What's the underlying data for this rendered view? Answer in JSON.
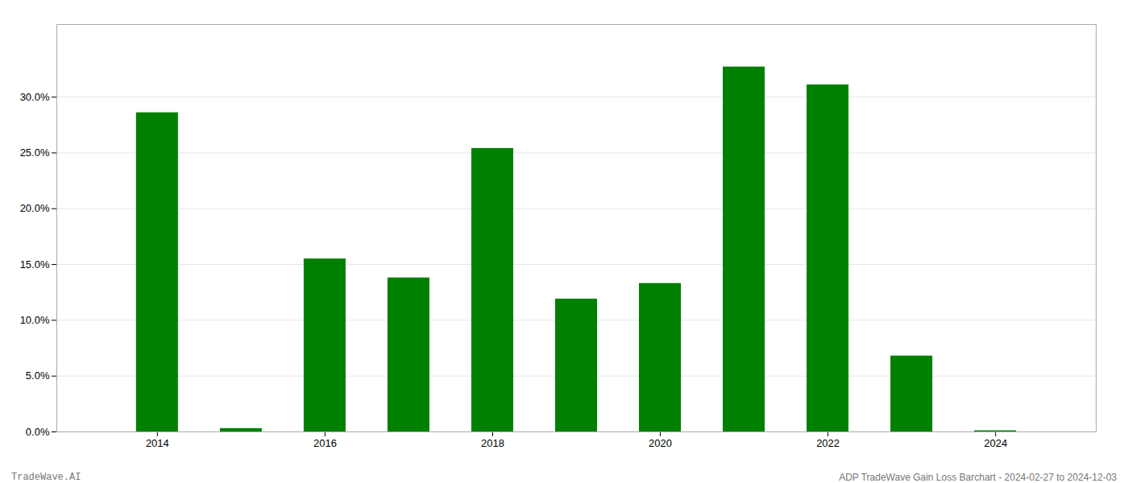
{
  "chart_data": {
    "type": "bar",
    "x": [
      2014,
      2015,
      2016,
      2017,
      2018,
      2019,
      2020,
      2021,
      2022,
      2023,
      2024
    ],
    "values": [
      0.286,
      0.003,
      0.155,
      0.138,
      0.254,
      0.119,
      0.133,
      0.327,
      0.311,
      0.068,
      0.001
    ],
    "color": "#008000",
    "xlim": [
      2012.8,
      2025.2
    ],
    "xticks": [
      2014,
      2016,
      2018,
      2020,
      2022,
      2024
    ],
    "ylim": [
      0,
      0.365
    ],
    "yticks": [
      {
        "value": 0.0,
        "label": "0.0%"
      },
      {
        "value": 0.05,
        "label": "5.0%"
      },
      {
        "value": 0.1,
        "label": "10.0%"
      },
      {
        "value": 0.15,
        "label": "15.0%"
      },
      {
        "value": 0.2,
        "label": "20.0%"
      },
      {
        "value": 0.25,
        "label": "25.0%"
      },
      {
        "value": 0.3,
        "label": "30.0%"
      }
    ],
    "grid": true,
    "annotations": [
      "TradeWave.AI",
      "ADP TradeWave Gain Loss Barchart - 2024-02-27 to 2024-12-03"
    ]
  }
}
